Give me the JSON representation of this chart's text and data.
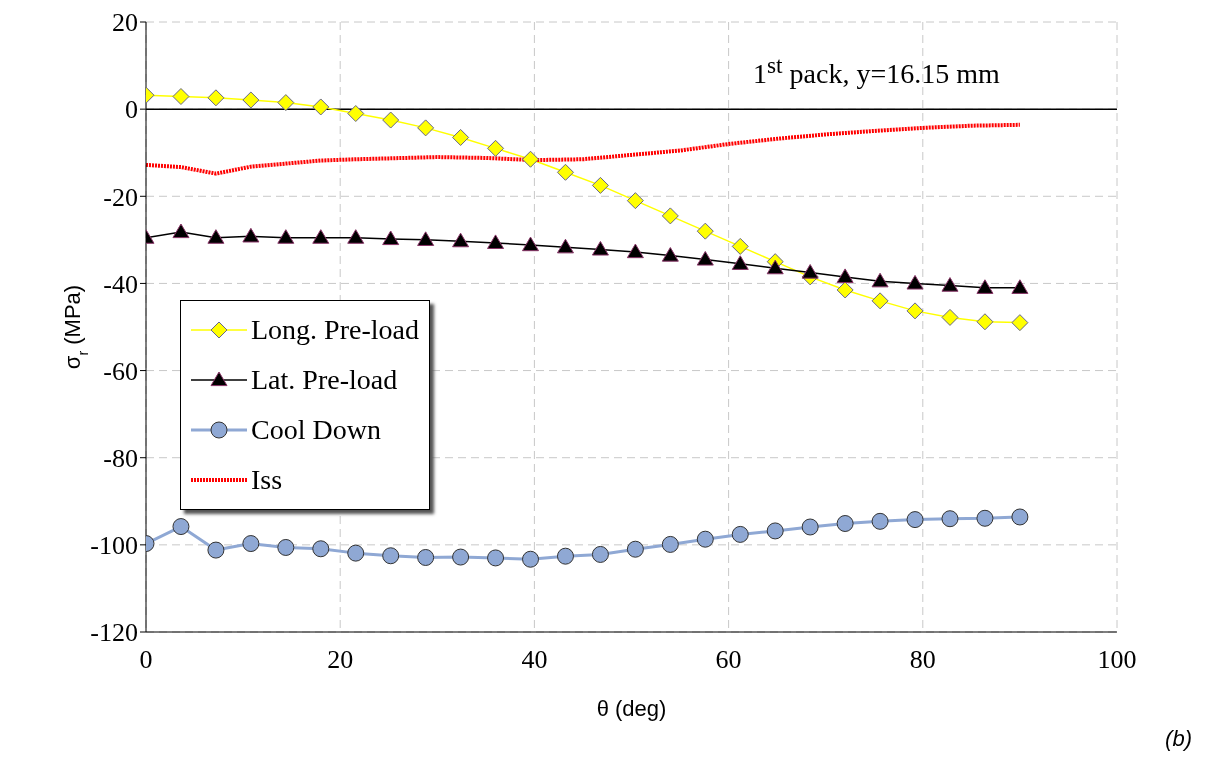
{
  "chart_data": {
    "type": "line",
    "xlabel": "θ (deg)",
    "ylabel": "σ$_{r}$ (MPa)",
    "annotations": [
      "1$^{st}$ pack, y=16.15 mm",
      "(b)"
    ],
    "xlim": [
      0,
      100
    ],
    "xticks": [
      0,
      20,
      40,
      60,
      80,
      100
    ],
    "ylim": [
      -120,
      20
    ],
    "yticks": [
      -120,
      -100,
      -80,
      -60,
      -40,
      -20,
      0,
      20
    ],
    "grid": true,
    "legend": "left",
    "ref_lines": [
      {
        "axis": "y",
        "value": 0,
        "color": "#000000"
      }
    ],
    "series": [
      {
        "name": "Long. Pre-load",
        "color": "#ffff00",
        "marker": "diamond",
        "x": [
          0,
          3.6,
          7.2,
          10.8,
          14.4,
          18,
          21.6,
          25.2,
          28.8,
          32.4,
          36,
          39.6,
          43.2,
          46.8,
          50.4,
          54,
          57.6,
          61.2,
          64.8,
          68.4,
          72,
          75.6,
          79.2,
          82.8,
          86.4,
          90
        ],
        "values": [
          3.2,
          2.9,
          2.6,
          2.1,
          1.5,
          0.5,
          -1.0,
          -2.5,
          -4.3,
          -6.5,
          -9.0,
          -11.5,
          -14.5,
          -17.5,
          -21,
          -24.5,
          -28,
          -31.5,
          -35,
          -38.5,
          -41.5,
          -44,
          -46.3,
          -47.8,
          -48.8,
          -49
        ]
      },
      {
        "name": "Lat. Pre-load",
        "color": "#000000",
        "marker": "triangle",
        "x": [
          0,
          3.6,
          7.2,
          10.8,
          14.4,
          18,
          21.6,
          25.2,
          28.8,
          32.4,
          36,
          39.6,
          43.2,
          46.8,
          50.4,
          54,
          57.6,
          61.2,
          64.8,
          68.4,
          72,
          75.6,
          79.2,
          82.8,
          86.4,
          90
        ],
        "values": [
          -29.5,
          -28.2,
          -29.5,
          -29.2,
          -29.5,
          -29.5,
          -29.5,
          -29.8,
          -30,
          -30.3,
          -30.7,
          -31.2,
          -31.7,
          -32.2,
          -32.8,
          -33.6,
          -34.5,
          -35.5,
          -36.5,
          -37.5,
          -38.5,
          -39.5,
          -40,
          -40.5,
          -41,
          -41
        ]
      },
      {
        "name": "Cool Down",
        "color": "#8fa8d4",
        "marker": "circle",
        "x": [
          0,
          3.6,
          7.2,
          10.8,
          14.4,
          18,
          21.6,
          25.2,
          28.8,
          32.4,
          36,
          39.6,
          43.2,
          46.8,
          50.4,
          54,
          57.6,
          61.2,
          64.8,
          68.4,
          72,
          75.6,
          79.2,
          82.8,
          86.4,
          90
        ],
        "values": [
          -99.7,
          -95.8,
          -101.2,
          -99.7,
          -100.6,
          -100.9,
          -101.9,
          -102.5,
          -102.9,
          -102.8,
          -103,
          -103.3,
          -102.6,
          -102.2,
          -101,
          -99.9,
          -98.7,
          -97.6,
          -96.8,
          -95.9,
          -95.1,
          -94.6,
          -94.2,
          -94,
          -93.9,
          -93.6
        ]
      },
      {
        "name": "Iss",
        "color": "#ff0000",
        "marker": "none",
        "line_style": "dotted",
        "x": [
          0,
          3.6,
          7.2,
          10.8,
          14.4,
          18,
          21.6,
          25,
          30,
          35,
          40,
          45,
          50,
          55,
          60,
          65,
          70,
          75,
          80,
          85,
          90
        ],
        "values": [
          -12.8,
          -13.3,
          -14.8,
          -13.2,
          -12.5,
          -11.8,
          -11.5,
          -11.3,
          -11.0,
          -11.2,
          -11.7,
          -11.5,
          -10.5,
          -9.5,
          -8.0,
          -6.8,
          -5.8,
          -5.0,
          -4.3,
          -3.8,
          -3.6
        ]
      }
    ]
  }
}
